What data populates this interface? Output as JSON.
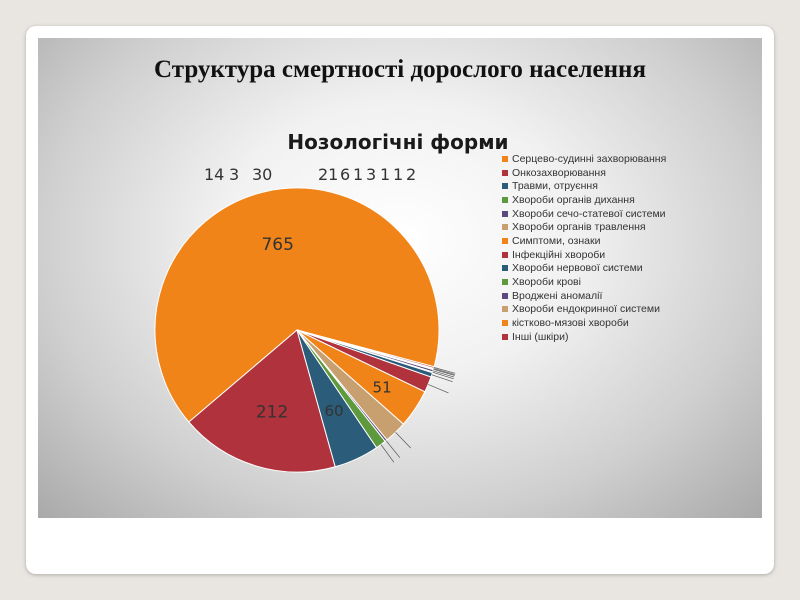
{
  "slide": {
    "title": "Структура смертності дорослого населення"
  },
  "chart_data": {
    "type": "pie",
    "title": "Нозологічні форми",
    "legend_position": "right",
    "slices": [
      {
        "name": "Серцево-судинні захворювання",
        "value": 765,
        "color": "#f08418",
        "label": "765"
      },
      {
        "name": "Онкозахворювання",
        "value": 212,
        "color": "#b0323c",
        "label": "212"
      },
      {
        "name": "Травми, отруєння",
        "value": 60,
        "color": "#2b5c7a",
        "label": "60"
      },
      {
        "name": "Хвороби органів дихання",
        "value": 14,
        "color": "#5e9a3d",
        "label": ""
      },
      {
        "name": "Хвороби сечо-статевої системи",
        "value": 3,
        "color": "#5c4a7e",
        "label": ""
      },
      {
        "name": "Хвороби органів травлення",
        "value": 30,
        "color": "#c8a070",
        "label": ""
      },
      {
        "name": "Симптоми, ознаки",
        "value": 51,
        "color": "#f08418",
        "label": "51"
      },
      {
        "name": "Інфекційні хвороби",
        "value": 21,
        "color": "#b0323c",
        "label": ""
      },
      {
        "name": "Хвороби нервової системи",
        "value": 6,
        "color": "#2b5c7a",
        "label": ""
      },
      {
        "name": "Хвороби крові",
        "value": 1,
        "color": "#5e9a3d",
        "label": ""
      },
      {
        "name": "Вроджені аномалії",
        "value": 3,
        "color": "#5c4a7e",
        "label": ""
      },
      {
        "name": "Хвороби ендокринної системи",
        "value": 1,
        "color": "#c8a070",
        "label": ""
      },
      {
        "name": "кістково-мязові хвороби",
        "value": 1,
        "color": "#f08418",
        "label": ""
      },
      {
        "name": "Інші (шкіри)",
        "value": 2,
        "color": "#b0323c",
        "label": ""
      }
    ],
    "outside_labels": [
      "14",
      "3",
      "30",
      "21",
      "6",
      "1",
      "3",
      "1",
      "1",
      "2"
    ]
  }
}
